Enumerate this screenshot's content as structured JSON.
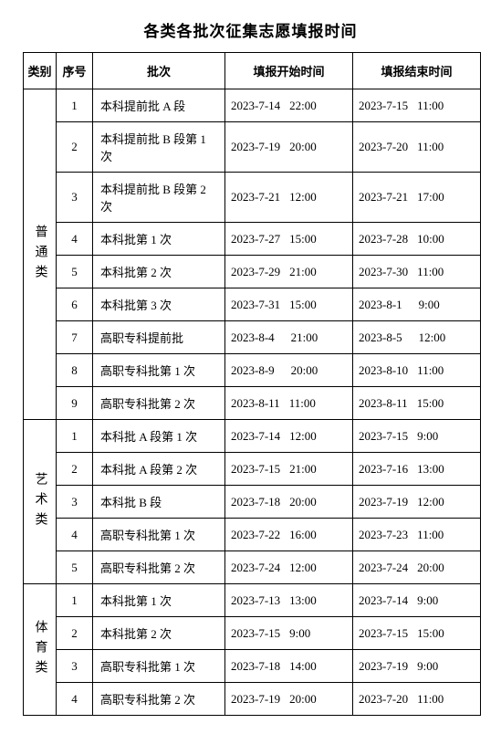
{
  "title": "各类各批次征集志愿填报时间",
  "headers": {
    "category": "类别",
    "index": "序号",
    "batch": "批次",
    "start": "填报开始时间",
    "end": "填报结束时间"
  },
  "categories": [
    {
      "name": "普通类",
      "rows": [
        {
          "idx": "1",
          "batch": "本科提前批 A 段",
          "start_date": "2023-7-14",
          "start_time": "22:00",
          "end_date": "2023-7-15",
          "end_time": "11:00"
        },
        {
          "idx": "2",
          "batch": "本科提前批 B 段第 1 次",
          "start_date": "2023-7-19",
          "start_time": "20:00",
          "end_date": "2023-7-20",
          "end_time": "11:00"
        },
        {
          "idx": "3",
          "batch": "本科提前批 B 段第 2 次",
          "start_date": "2023-7-21",
          "start_time": "12:00",
          "end_date": "2023-7-21",
          "end_time": "17:00"
        },
        {
          "idx": "4",
          "batch": "本科批第 1 次",
          "start_date": "2023-7-27",
          "start_time": "15:00",
          "end_date": "2023-7-28",
          "end_time": "10:00"
        },
        {
          "idx": "5",
          "batch": "本科批第 2 次",
          "start_date": "2023-7-29",
          "start_time": "21:00",
          "end_date": "2023-7-30",
          "end_time": "11:00"
        },
        {
          "idx": "6",
          "batch": "本科批第 3 次",
          "start_date": "2023-7-31",
          "start_time": "15:00",
          "end_date": "2023-8-1",
          "end_time": "9:00"
        },
        {
          "idx": "7",
          "batch": "高职专科提前批",
          "start_date": "2023-8-4",
          "start_time": "21:00",
          "end_date": "2023-8-5",
          "end_time": "12:00"
        },
        {
          "idx": "8",
          "batch": "高职专科批第 1 次",
          "start_date": "2023-8-9",
          "start_time": "20:00",
          "end_date": "2023-8-10",
          "end_time": "11:00"
        },
        {
          "idx": "9",
          "batch": "高职专科批第 2 次",
          "start_date": "2023-8-11",
          "start_time": "11:00",
          "end_date": "2023-8-11",
          "end_time": "15:00"
        }
      ]
    },
    {
      "name": "艺术类",
      "rows": [
        {
          "idx": "1",
          "batch": "本科批 A 段第 1 次",
          "start_date": "2023-7-14",
          "start_time": "12:00",
          "end_date": "2023-7-15",
          "end_time": "9:00"
        },
        {
          "idx": "2",
          "batch": "本科批 A 段第 2 次",
          "start_date": "2023-7-15",
          "start_time": "21:00",
          "end_date": "2023-7-16",
          "end_time": "13:00"
        },
        {
          "idx": "3",
          "batch": "本科批 B 段",
          "start_date": "2023-7-18",
          "start_time": "20:00",
          "end_date": "2023-7-19",
          "end_time": "12:00"
        },
        {
          "idx": "4",
          "batch": "高职专科批第 1 次",
          "start_date": "2023-7-22",
          "start_time": "16:00",
          "end_date": "2023-7-23",
          "end_time": "11:00"
        },
        {
          "idx": "5",
          "batch": "高职专科批第 2 次",
          "start_date": "2023-7-24",
          "start_time": "12:00",
          "end_date": "2023-7-24",
          "end_time": "20:00"
        }
      ]
    },
    {
      "name": "体育类",
      "rows": [
        {
          "idx": "1",
          "batch": "本科批第 1 次",
          "start_date": "2023-7-13",
          "start_time": "13:00",
          "end_date": "2023-7-14",
          "end_time": "9:00"
        },
        {
          "idx": "2",
          "batch": "本科批第 2 次",
          "start_date": "2023-7-15",
          "start_time": "9:00",
          "end_date": "2023-7-15",
          "end_time": "15:00"
        },
        {
          "idx": "3",
          "batch": "高职专科批第 1 次",
          "start_date": "2023-7-18",
          "start_time": "14:00",
          "end_date": "2023-7-19",
          "end_time": "9:00"
        },
        {
          "idx": "4",
          "batch": "高职专科批第 2 次",
          "start_date": "2023-7-19",
          "start_time": "20:00",
          "end_date": "2023-7-20",
          "end_time": "11:00"
        }
      ]
    }
  ],
  "styling": {
    "background_color": "#ffffff",
    "border_color": "#000000",
    "text_color": "#000000",
    "title_fontsize": 17,
    "body_fontsize": 13,
    "font_family": "SimSun"
  }
}
